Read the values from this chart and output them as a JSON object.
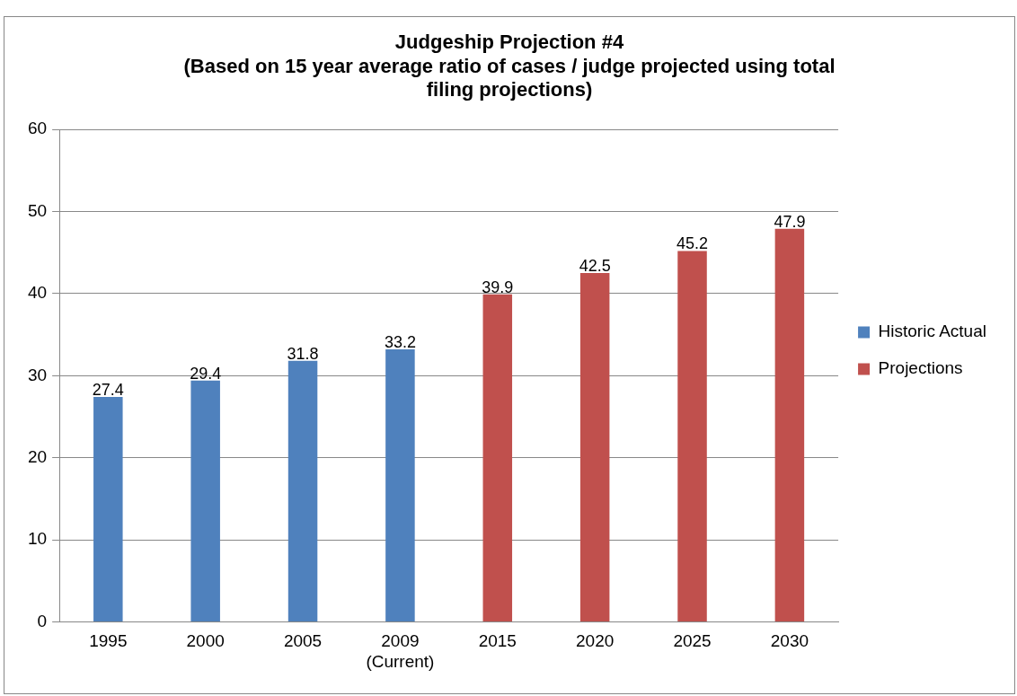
{
  "chart_data": {
    "type": "bar",
    "title": "Judgeship Projection #4",
    "subtitle": "(Based on 15 year average ratio of cases / judge projected using total filing projections)",
    "categories": [
      "1995",
      "2000",
      "2005",
      "2009\n(Current)",
      "2015",
      "2020",
      "2025",
      "2030"
    ],
    "series": [
      {
        "name": "Historic Actual",
        "color": "#4f81bd",
        "values": [
          27.4,
          29.4,
          31.8,
          33.2,
          null,
          null,
          null,
          null
        ]
      },
      {
        "name": "Projections",
        "color": "#c0504d",
        "values": [
          null,
          null,
          null,
          null,
          39.9,
          42.5,
          45.2,
          47.9
        ]
      }
    ],
    "stacked": true,
    "ylim": [
      0,
      60
    ],
    "yticks": [
      0,
      10,
      20,
      30,
      40,
      50,
      60
    ],
    "grid": "y",
    "legend": "right",
    "data_labels": true
  }
}
